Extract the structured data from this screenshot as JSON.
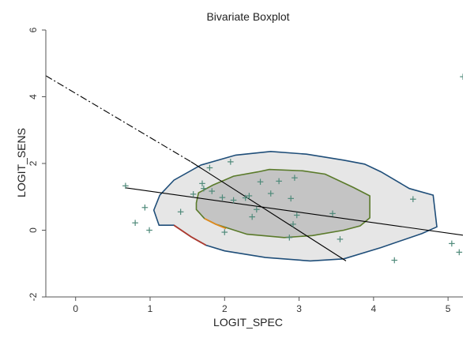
{
  "chart_data": {
    "type": "scatter",
    "title": "Bivariate Boxplot",
    "xlabel": "LOGIT_SPEC",
    "ylabel": "LOGIT_SENS",
    "xlim": [
      -0.4,
      5.2
    ],
    "ylim": [
      -2,
      6
    ],
    "xticks": [
      0,
      1,
      2,
      3,
      4,
      5
    ],
    "yticks": [
      -2,
      0,
      2,
      4,
      6
    ],
    "xtick_labels": [
      "0",
      "1",
      "2",
      "3",
      "4",
      "5"
    ],
    "ytick_labels": [
      "-2",
      "0",
      "2",
      "4",
      "6"
    ],
    "points": [
      {
        "x": 0.67,
        "y": 1.33
      },
      {
        "x": 0.8,
        "y": 0.22
      },
      {
        "x": 0.93,
        "y": 0.68
      },
      {
        "x": 0.99,
        "y": 0.0
      },
      {
        "x": 1.41,
        "y": 0.55
      },
      {
        "x": 1.58,
        "y": 1.08
      },
      {
        "x": 1.7,
        "y": 1.4
      },
      {
        "x": 1.72,
        "y": 1.25
      },
      {
        "x": 1.8,
        "y": 1.87
      },
      {
        "x": 1.83,
        "y": 1.17
      },
      {
        "x": 1.97,
        "y": 0.98
      },
      {
        "x": 2.0,
        "y": -0.06
      },
      {
        "x": 2.08,
        "y": 2.05
      },
      {
        "x": 2.12,
        "y": 0.9
      },
      {
        "x": 2.28,
        "y": 0.97
      },
      {
        "x": 2.33,
        "y": 1.03
      },
      {
        "x": 2.37,
        "y": 0.4
      },
      {
        "x": 2.43,
        "y": 0.62
      },
      {
        "x": 2.48,
        "y": 1.45
      },
      {
        "x": 2.62,
        "y": 1.1
      },
      {
        "x": 2.73,
        "y": 1.47
      },
      {
        "x": 2.87,
        "y": -0.22
      },
      {
        "x": 2.89,
        "y": 0.95
      },
      {
        "x": 2.92,
        "y": 0.18
      },
      {
        "x": 2.94,
        "y": 1.57
      },
      {
        "x": 2.97,
        "y": 0.45
      },
      {
        "x": 3.45,
        "y": 0.5
      },
      {
        "x": 3.55,
        "y": -0.27
      },
      {
        "x": 4.28,
        "y": -0.9
      },
      {
        "x": 4.53,
        "y": 0.93
      },
      {
        "x": 5.05,
        "y": -0.4
      },
      {
        "x": 5.15,
        "y": -0.66
      },
      {
        "x": 5.2,
        "y": 4.6
      }
    ],
    "fence": [
      [
        1.12,
        0.15
      ],
      [
        1.05,
        0.6
      ],
      [
        1.13,
        1.05
      ],
      [
        1.32,
        1.5
      ],
      [
        1.68,
        1.95
      ],
      [
        2.15,
        2.25
      ],
      [
        2.62,
        2.36
      ],
      [
        3.1,
        2.28
      ],
      [
        3.6,
        2.1
      ],
      [
        3.88,
        1.98
      ],
      [
        4.1,
        1.75
      ],
      [
        4.48,
        1.25
      ],
      [
        4.8,
        1.05
      ],
      [
        4.85,
        0.1
      ],
      [
        4.65,
        -0.1
      ],
      [
        4.1,
        -0.52
      ],
      [
        3.6,
        -0.86
      ],
      [
        3.15,
        -0.92
      ],
      [
        2.55,
        -0.82
      ],
      [
        2.0,
        -0.62
      ],
      [
        1.75,
        -0.45
      ],
      [
        1.55,
        -0.2
      ],
      [
        1.32,
        0.15
      ]
    ],
    "hinge": [
      [
        1.62,
        0.82
      ],
      [
        1.65,
        1.12
      ],
      [
        1.84,
        1.35
      ],
      [
        2.12,
        1.62
      ],
      [
        2.45,
        1.75
      ],
      [
        2.6,
        1.82
      ],
      [
        3.05,
        1.78
      ],
      [
        3.35,
        1.68
      ],
      [
        3.73,
        1.28
      ],
      [
        3.95,
        1.03
      ],
      [
        3.95,
        0.37
      ],
      [
        3.82,
        0.13
      ],
      [
        3.6,
        0.0
      ],
      [
        3.18,
        -0.16
      ],
      [
        2.8,
        -0.22
      ],
      [
        2.3,
        -0.12
      ],
      [
        1.88,
        0.18
      ],
      [
        1.73,
        0.35
      ],
      [
        1.62,
        0.62
      ]
    ],
    "fence_red_segment": [
      [
        1.32,
        0.15
      ],
      [
        1.55,
        -0.2
      ],
      [
        1.75,
        -0.45
      ]
    ],
    "hinge_orange_segment": [
      [
        1.73,
        0.35
      ],
      [
        1.88,
        0.18
      ],
      [
        2.02,
        0.05
      ]
    ],
    "regression_solid": [
      [
        0.67,
        1.27
      ],
      [
        5.2,
        -0.15
      ]
    ],
    "regression_xy_solid": [
      [
        1.55,
        2.05
      ],
      [
        3.63,
        -0.92
      ]
    ],
    "regression_xy_dashed": [
      [
        -0.4,
        4.63
      ],
      [
        1.55,
        2.05
      ]
    ],
    "colors": {
      "background": "#ffffff",
      "plot_area": "#ffffff",
      "fence_fill": "#e6e6e6",
      "fence_stroke": "#1f4e79",
      "hinge_fill": "#c4c4c4",
      "hinge_stroke": "#5a7a2a",
      "marker": "#4f8a7a",
      "red_segment": "#b03a2e",
      "orange_segment": "#e08a1e",
      "line": "#000000",
      "axis": "#555555"
    }
  }
}
